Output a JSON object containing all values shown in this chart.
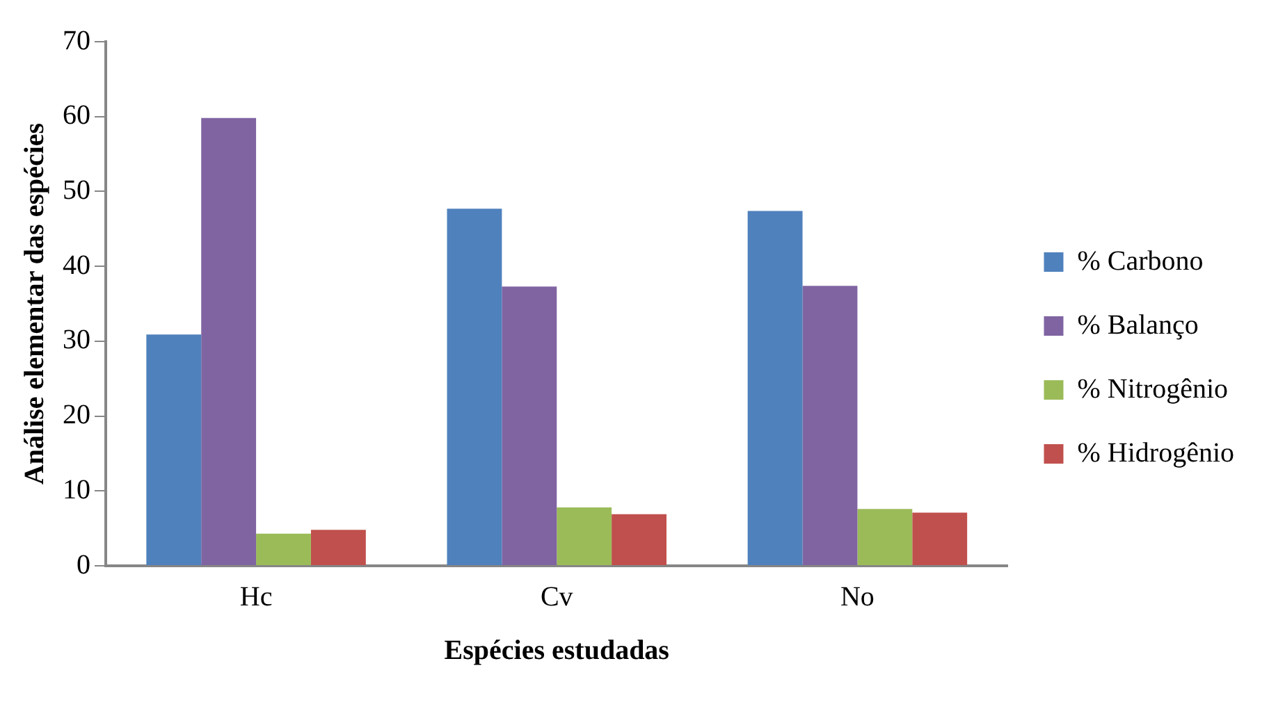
{
  "chart_data": {
    "type": "bar",
    "xlabel": "Espécies estudadas",
    "ylabel": "Análise elementar das espécies",
    "categories": [
      "Hc",
      "Cv",
      "No"
    ],
    "series": [
      {
        "name": "% Carbono",
        "color": "#4f81bd",
        "values": [
          30.9,
          47.7,
          47.4
        ]
      },
      {
        "name": "% Balanço",
        "color": "#8064a2",
        "values": [
          59.8,
          37.3,
          37.4
        ]
      },
      {
        "name": "% Nitrogênio",
        "color": "#9bbb59",
        "values": [
          4.3,
          7.8,
          7.6
        ]
      },
      {
        "name": "% Hidrogênio",
        "color": "#c0504d",
        "values": [
          4.8,
          6.9,
          7.1
        ]
      }
    ],
    "ylim": [
      0,
      70
    ],
    "yticks": [
      0,
      10,
      20,
      30,
      40,
      50,
      60,
      70
    ],
    "grid": false,
    "legend": "right"
  }
}
